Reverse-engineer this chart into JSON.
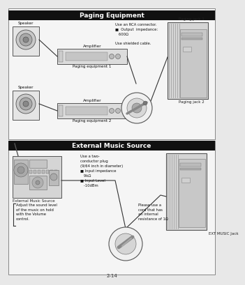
{
  "page_bg": "#e8e8e8",
  "title1": "Paging Equipment",
  "title2": "External Music Source",
  "title_bg": "#111111",
  "title_fg": "#ffffff",
  "content_bg": "#f5f5f5",
  "border_color": "#555555",
  "page_num": "2-14",
  "paging_labels": {
    "paging_jack_1": "Paging jack 1",
    "paging_jack_2": "Paging jack 2",
    "speaker1": "Speaker",
    "speaker2": "Speaker",
    "amplifier1": "Amplifier",
    "amplifier2": "Amplifier",
    "paging_eq1": "Paging equipment 1",
    "paging_eq2": "Paging equipment 2",
    "rca_note": "Use an RCA connector.\n■  Output  impedance:\n   600Ω",
    "shielded": "Use shielded cable."
  },
  "music_labels": {
    "ext_music": "External Music Source",
    "ext_music_jack": "EXT MUSIC Jack",
    "ext_music_caption": "External Music Source",
    "adjust_note": "Adjust the sound level\nof the music on hold\nwith the Volume\ncontrol.",
    "conductor_note": "Use a two-\nconductor plug\n(9/64 inch in diameter)\n■ Input impedance\n   9kΩ\n■ Input Level\n   -10dBm",
    "resistance_note": "Please use a\ncord that has\nan internal\nresistance of 1Ω"
  }
}
